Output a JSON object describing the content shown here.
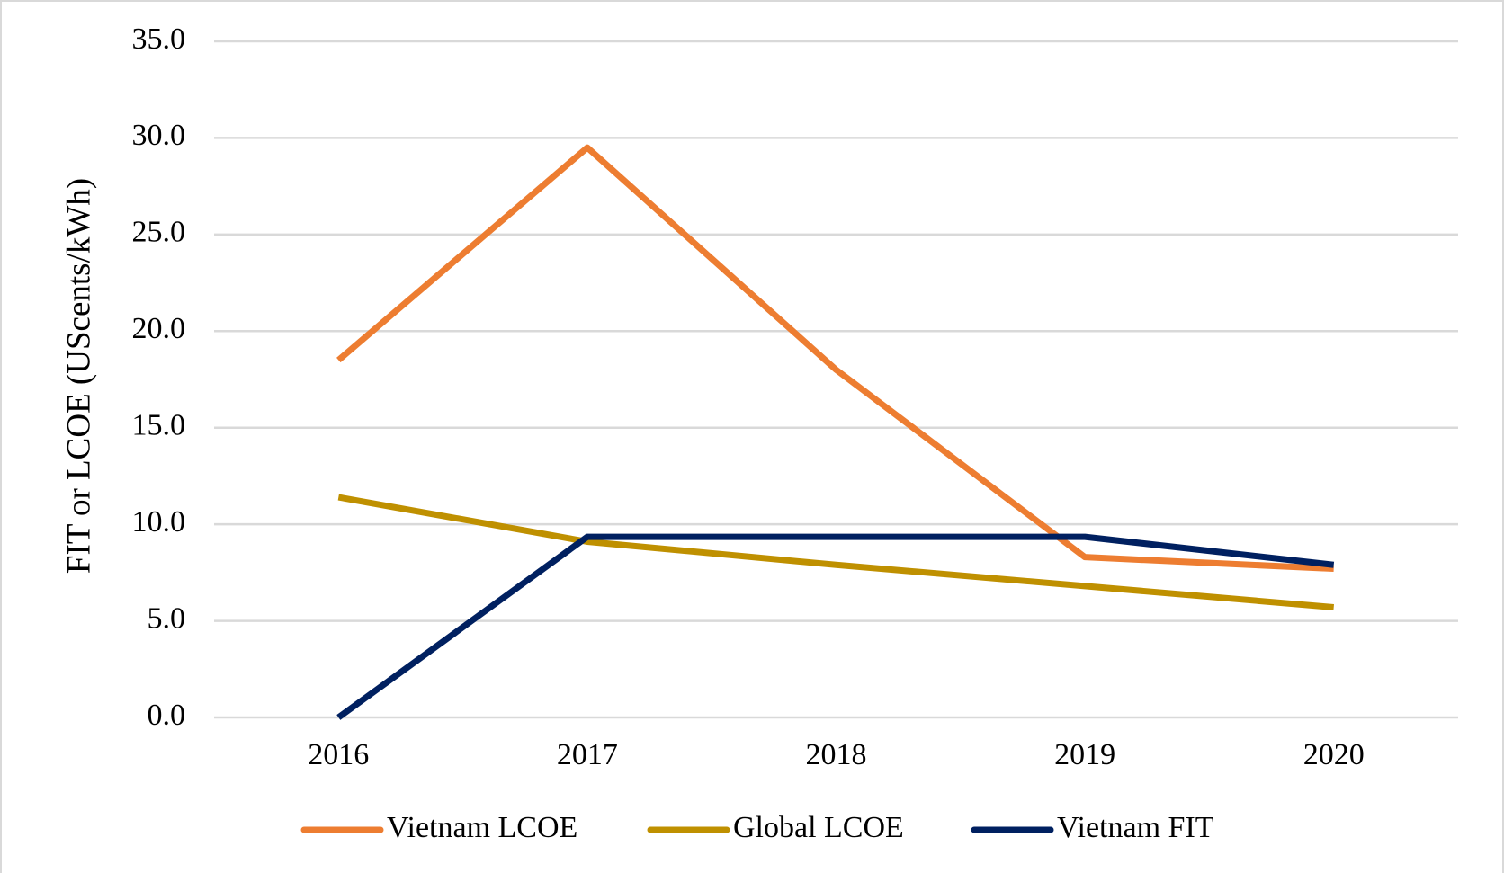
{
  "chart_data": {
    "type": "line",
    "y_label": "FIT or LCOE (UScents/kWh)",
    "categories": [
      "2016",
      "2017",
      "2018",
      "2019",
      "2020"
    ],
    "series": [
      {
        "name": "Vietnam LCOE",
        "color": "#ed7d31",
        "values": [
          18.5,
          29.5,
          18.0,
          8.3,
          7.7
        ]
      },
      {
        "name": "Global LCOE",
        "color": "#bf9000",
        "values": [
          11.4,
          9.1,
          7.9,
          6.8,
          5.7
        ]
      },
      {
        "name": "Vietnam FIT",
        "color": "#002060",
        "values": [
          0.0,
          9.35,
          9.35,
          9.35,
          7.9
        ]
      }
    ],
    "ylim": [
      0,
      35
    ],
    "yticks": [
      {
        "value": 0,
        "label": "0.0"
      },
      {
        "value": 5,
        "label": "5.0"
      },
      {
        "value": 10,
        "label": "10.0"
      },
      {
        "value": 15,
        "label": "15.0"
      },
      {
        "value": 20,
        "label": "20.0"
      },
      {
        "value": 25,
        "label": "25.0"
      },
      {
        "value": 30,
        "label": "30.0"
      },
      {
        "value": 35,
        "label": "35.0"
      }
    ],
    "grid": true,
    "legend": "bottom"
  }
}
